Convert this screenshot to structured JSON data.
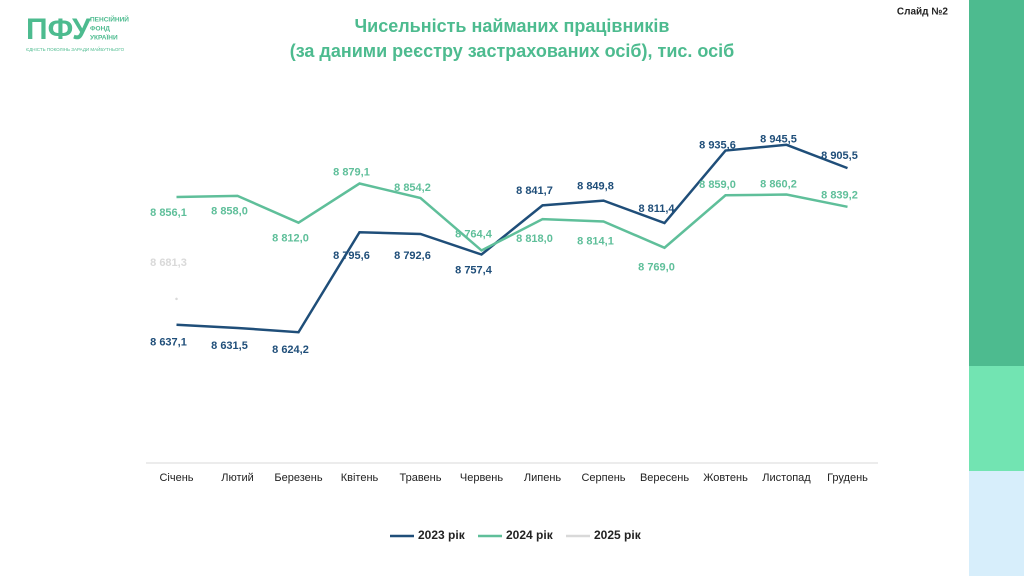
{
  "header": {
    "logo": "ПФУ",
    "logo_text": [
      "ПЕНСІЙНИЙ",
      "ФОНД",
      "УКРАЇНИ"
    ],
    "tagline": "ЄДНІСТЬ ПОКОЛІНЬ ЗАРАДИ МАЙБУТНЬОГО",
    "slide": "Слайд №2"
  },
  "chart_data": {
    "type": "line",
    "title": "Чисельність найманих працівників",
    "subtitle": "(за даними реєстру застрахованих осіб), тис. осіб",
    "categories": [
      "Січень",
      "Лютий",
      "Березень",
      "Квітень",
      "Травень",
      "Червень",
      "Липень",
      "Серпень",
      "Вересень",
      "Жовтень",
      "Листопад",
      "Грудень"
    ],
    "ylim": [
      8400,
      9000
    ],
    "legend": "bottom",
    "series": [
      {
        "name": "2023 рік",
        "color": "#1f4e79",
        "values": [
          8637.1,
          8631.5,
          8624.2,
          8795.6,
          8792.6,
          8757.4,
          8841.7,
          8849.8,
          8811.4,
          8935.6,
          8945.5,
          8905.5
        ],
        "value_labels": [
          "8 637,1",
          "8 631,5",
          "8 624,2",
          "8 795,6",
          "8 792,6",
          "8 757,4",
          "8 841,7",
          "8 849,8",
          "8 811,4",
          "8 935,6",
          "8 945,5",
          "8 905,5"
        ]
      },
      {
        "name": "2024 рік",
        "color": "#5fbf9a",
        "values": [
          8856.1,
          8858.0,
          8812.0,
          8879.1,
          8854.2,
          8764.4,
          8818.0,
          8814.1,
          8769.0,
          8859.0,
          8860.2,
          8839.2
        ],
        "value_labels": [
          "8 856,1",
          "8 858,0",
          "8 812,0",
          "8 879,1",
          "8 854,2",
          "8 764,4",
          "8 818,0",
          "8 814,1",
          "8 769,0",
          "8 859,0",
          "8 860,2",
          "8 839,2"
        ]
      },
      {
        "name": "2025 рік",
        "color": "#d9d9d9",
        "values": [
          8681.3,
          null,
          null,
          null,
          null,
          null,
          null,
          null,
          null,
          null,
          null,
          null
        ],
        "value_labels": [
          "8 681,3",
          null,
          null,
          null,
          null,
          null,
          null,
          null,
          null,
          null,
          null,
          null
        ]
      }
    ]
  }
}
